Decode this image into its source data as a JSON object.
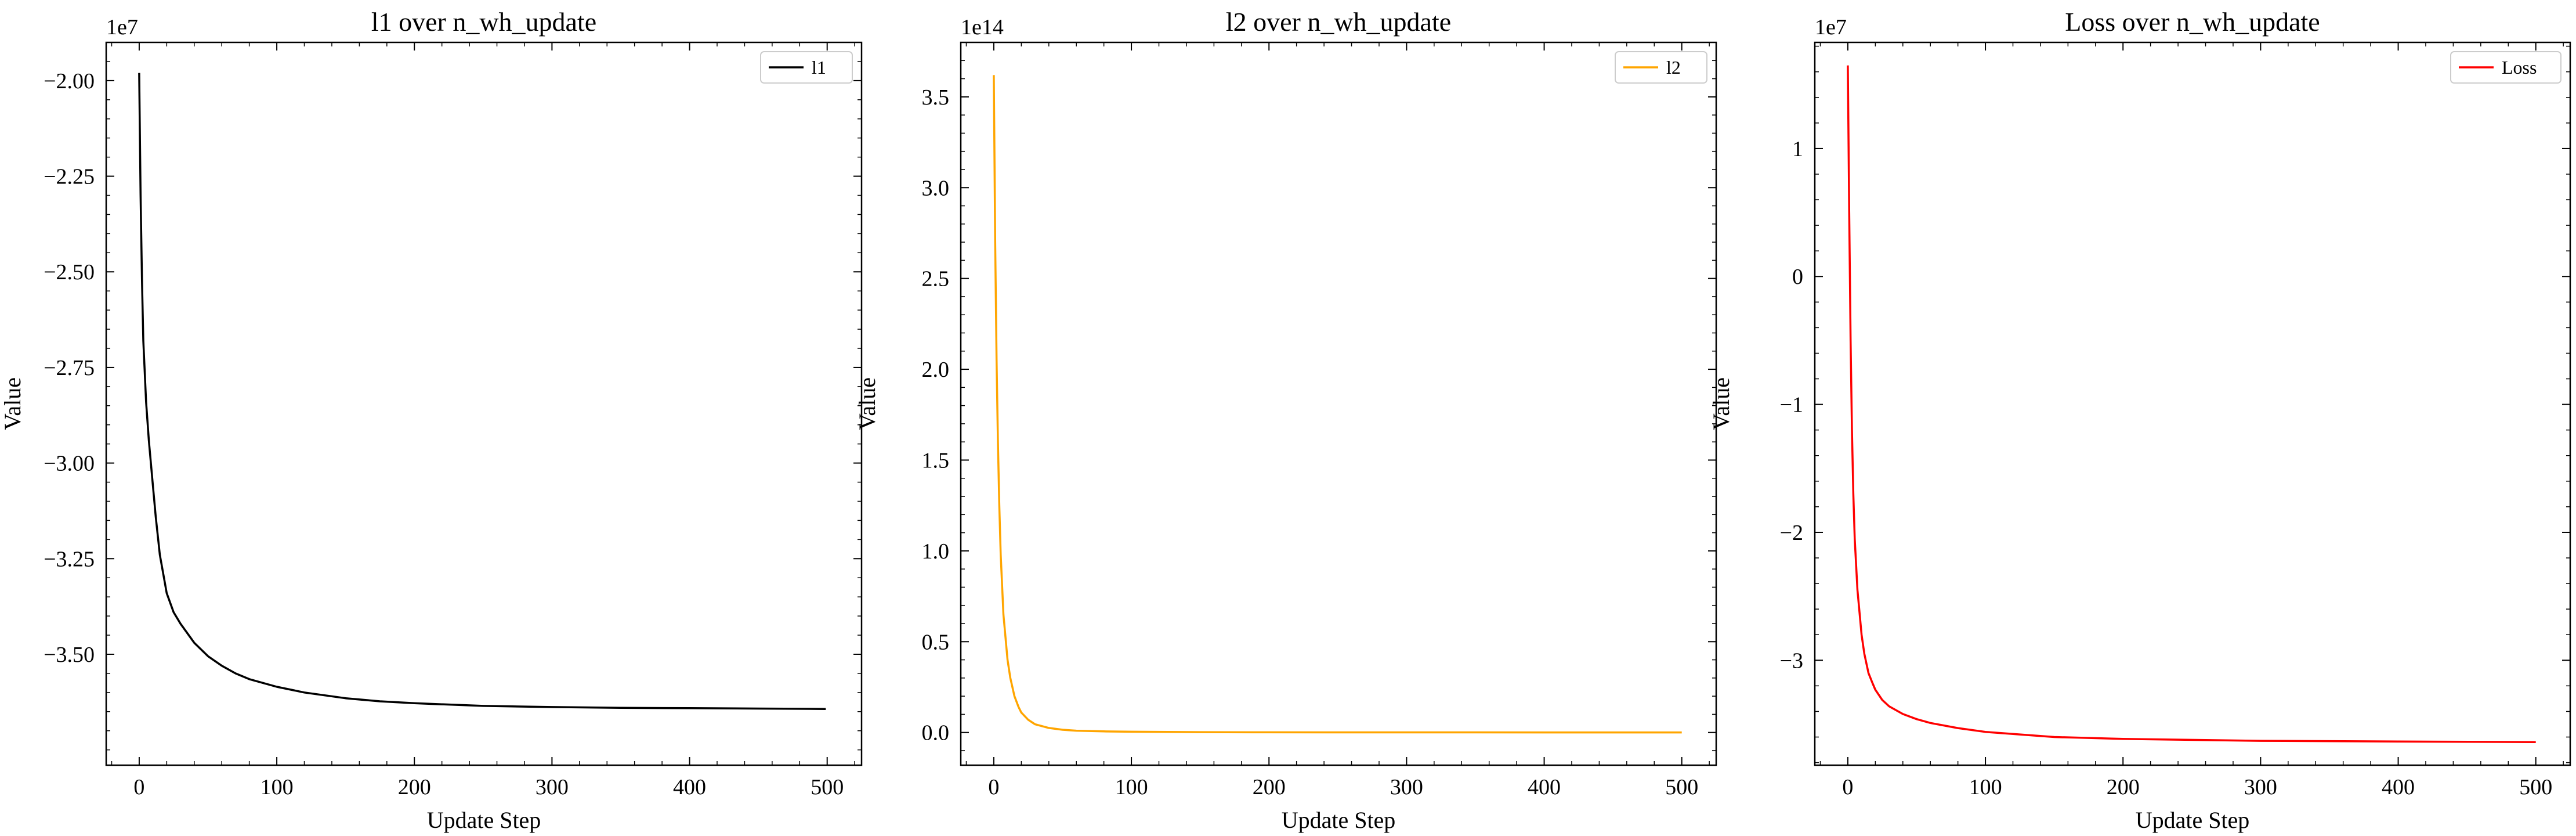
{
  "chart_data": [
    {
      "type": "line",
      "title": "l1 over n_wh_update",
      "xlabel": "Update Step",
      "ylabel": "Value",
      "y_multiplier": "1e7",
      "xlim": [
        -24,
        525
      ],
      "ylim": [
        -3.79,
        -1.9
      ],
      "x_ticks": [
        0,
        100,
        200,
        300,
        400,
        500
      ],
      "x_tick_labels": [
        "0",
        "100",
        "200",
        "300",
        "400",
        "500"
      ],
      "y_ticks": [
        -3.5,
        -3.25,
        -3.0,
        -2.75,
        -2.5,
        -2.25,
        -2.0
      ],
      "y_tick_labels": [
        "−3.50",
        "−3.25",
        "−3.00",
        "−2.75",
        "−2.50",
        "−2.25",
        "−2.00"
      ],
      "legend": "upper right",
      "grid": false,
      "series": [
        {
          "name": "l1",
          "color": "#000000",
          "x": [
            0,
            1,
            2,
            3,
            5,
            7,
            10,
            12,
            15,
            18,
            20,
            25,
            30,
            40,
            50,
            60,
            70,
            80,
            100,
            120,
            150,
            175,
            200,
            250,
            300,
            350,
            400,
            450,
            499
          ],
          "y": [
            -1.98,
            -2.3,
            -2.52,
            -2.68,
            -2.84,
            -2.94,
            -3.06,
            -3.14,
            -3.24,
            -3.3,
            -3.34,
            -3.39,
            -3.42,
            -3.47,
            -3.505,
            -3.53,
            -3.55,
            -3.565,
            -3.585,
            -3.6,
            -3.615,
            -3.623,
            -3.628,
            -3.635,
            -3.638,
            -3.64,
            -3.641,
            -3.642,
            -3.643
          ]
        }
      ]
    },
    {
      "type": "line",
      "title": "l2 over n_wh_update",
      "xlabel": "Update Step",
      "ylabel": "Value",
      "y_multiplier": "1e14",
      "xlim": [
        -24,
        525
      ],
      "ylim": [
        -0.18,
        3.8
      ],
      "x_ticks": [
        0,
        100,
        200,
        300,
        400,
        500
      ],
      "x_tick_labels": [
        "0",
        "100",
        "200",
        "300",
        "400",
        "500"
      ],
      "y_ticks": [
        0,
        0.5,
        1.0,
        1.5,
        2.0,
        2.5,
        3.0,
        3.5
      ],
      "y_tick_labels": [
        "0.0",
        "0.5",
        "1.0",
        "1.5",
        "2.0",
        "2.5",
        "3.0",
        "3.5"
      ],
      "legend": "upper right",
      "grid": false,
      "series": [
        {
          "name": "l2",
          "color": "#ffa500",
          "x": [
            0,
            1,
            2,
            3,
            4,
            5,
            7,
            10,
            12,
            15,
            18,
            20,
            25,
            30,
            40,
            50,
            60,
            80,
            100,
            150,
            200,
            300,
            400,
            500
          ],
          "y": [
            3.62,
            2.7,
            2.05,
            1.6,
            1.25,
            0.98,
            0.65,
            0.4,
            0.3,
            0.2,
            0.14,
            0.11,
            0.07,
            0.045,
            0.025,
            0.015,
            0.01,
            0.006,
            0.004,
            0.002,
            0.001,
            0.0005,
            0.0003,
            0.0002
          ]
        }
      ]
    },
    {
      "type": "line",
      "title": "Loss over n_wh_update",
      "xlabel": "Update Step",
      "ylabel": "Value",
      "y_multiplier": "1e7",
      "xlim": [
        -24,
        525
      ],
      "ylim": [
        -3.82,
        1.83
      ],
      "x_ticks": [
        0,
        100,
        200,
        300,
        400,
        500
      ],
      "x_tick_labels": [
        "0",
        "100",
        "200",
        "300",
        "400",
        "500"
      ],
      "y_ticks": [
        -3,
        -2,
        -1,
        0,
        1
      ],
      "y_tick_labels": [
        "−3",
        "−2",
        "−1",
        "0",
        "1"
      ],
      "legend": "upper right",
      "grid": false,
      "series": [
        {
          "name": "Loss",
          "color": "#ff0000",
          "x": [
            0,
            1,
            2,
            3,
            4,
            5,
            7,
            10,
            12,
            15,
            18,
            20,
            25,
            30,
            40,
            50,
            60,
            80,
            100,
            150,
            200,
            300,
            400,
            500
          ],
          "y": [
            1.65,
            0.5,
            -0.5,
            -1.2,
            -1.7,
            -2.05,
            -2.45,
            -2.8,
            -2.95,
            -3.1,
            -3.18,
            -3.23,
            -3.31,
            -3.36,
            -3.42,
            -3.46,
            -3.49,
            -3.53,
            -3.56,
            -3.6,
            -3.615,
            -3.63,
            -3.635,
            -3.64
          ]
        }
      ]
    }
  ]
}
